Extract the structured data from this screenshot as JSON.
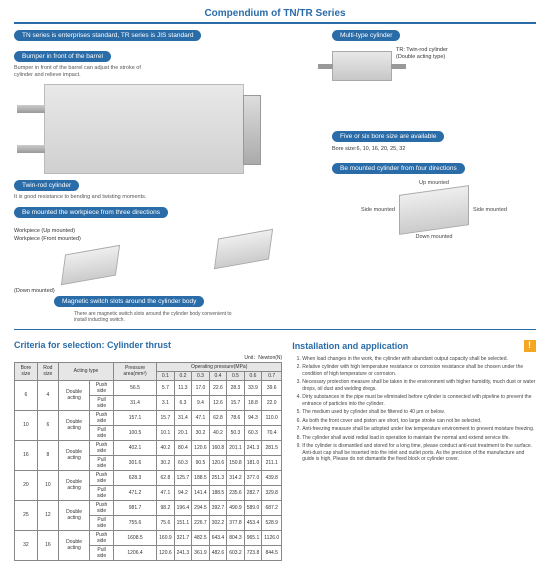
{
  "title": "Compendium of TN/TR Series",
  "subtitle_pill": "TN series is enterprises standard, TR series is JIS standard",
  "multi_type": {
    "pill": "Multi-type cylinder",
    "label": "TR: Twin-rod cylinder (Double acting type)"
  },
  "callouts": {
    "bumper": {
      "pill": "Bumper in front of the barrel",
      "desc": "Bumper in front of the barrel can adjust the stroke of cylinder and relieve impact."
    },
    "twinrod": {
      "pill": "Twin-rod cylinder",
      "desc": "It is good resistance to bending and twisting moments."
    },
    "three_dir": {
      "pill": "Be mounted the workpiece from three directions"
    },
    "four_dir": {
      "pill": "Be mounted cylinder from four directions"
    },
    "bore": {
      "pill": "Five or six bore size are available",
      "desc": "Bore size:6, 10, 16, 20, 25, 32"
    },
    "magnetic": {
      "pill": "Magnetic switch slots around the cylinder body",
      "desc": "There are magnetic switch slots around the cylinder body convenient to install inducting switch."
    }
  },
  "workpiece": {
    "up": "Workpiece (Up mounted)",
    "front": "Workpiece (Front mounted)",
    "down": "(Down mounted)"
  },
  "mount4": {
    "up": "Up mounted",
    "side": "Side mounted",
    "sideL": "Side mounted",
    "down": "Down mounted"
  },
  "criteria_title": "Criteria for selection: Cylinder thrust",
  "install_title": "Installation and application",
  "unit": "Unit：Newton(N)",
  "table": {
    "headers": {
      "bore": "Bore size",
      "rod": "Rod size",
      "acting": "Acting type",
      "push": "Push side",
      "pull": "Pull side",
      "double": "Double acting",
      "press_area": "Pressure area(mm²)",
      "op_press": "Operating pressure(MPa)",
      "p": [
        "0.1",
        "0.2",
        "0.3",
        "0.4",
        "0.5",
        "0.6",
        "0.7"
      ]
    },
    "rows": [
      {
        "bore": "6",
        "rod": "4",
        "pa_push": "56.5",
        "pa_pull": "31.4",
        "push": [
          "5.7",
          "11.3",
          "17.0",
          "22.6",
          "28.3",
          "33.9",
          "39.6"
        ],
        "pull": [
          "3.1",
          "6.3",
          "9.4",
          "12.6",
          "15.7",
          "18.8",
          "22.0"
        ]
      },
      {
        "bore": "10",
        "rod": "6",
        "pa_push": "157.1",
        "pa_pull": "100.5",
        "push": [
          "15.7",
          "31.4",
          "47.1",
          "62.8",
          "78.6",
          "94.3",
          "110.0"
        ],
        "pull": [
          "10.1",
          "20.1",
          "30.2",
          "40.2",
          "50.3",
          "60.3",
          "70.4"
        ]
      },
      {
        "bore": "16",
        "rod": "8",
        "pa_push": "402.1",
        "pa_pull": "301.6",
        "push": [
          "40.2",
          "80.4",
          "120.6",
          "160.8",
          "201.1",
          "241.3",
          "281.5"
        ],
        "pull": [
          "30.2",
          "60.3",
          "90.5",
          "120.6",
          "150.8",
          "181.0",
          "211.1"
        ]
      },
      {
        "bore": "20",
        "rod": "10",
        "pa_push": "628.3",
        "pa_pull": "471.2",
        "push": [
          "62.8",
          "125.7",
          "188.5",
          "251.3",
          "314.2",
          "377.0",
          "439.8"
        ],
        "pull": [
          "47.1",
          "94.2",
          "141.4",
          "188.5",
          "235.6",
          "282.7",
          "329.8"
        ]
      },
      {
        "bore": "25",
        "rod": "12",
        "pa_push": "981.7",
        "pa_pull": "755.6",
        "push": [
          "98.2",
          "196.4",
          "294.5",
          "392.7",
          "490.9",
          "589.0",
          "687.2"
        ],
        "pull": [
          "75.6",
          "151.1",
          "226.7",
          "302.2",
          "377.8",
          "453.4",
          "528.9"
        ]
      },
      {
        "bore": "32",
        "rod": "16",
        "pa_push": "1608.5",
        "pa_pull": "1206.4",
        "push": [
          "160.9",
          "321.7",
          "482.5",
          "643.4",
          "804.3",
          "965.1",
          "1126.0"
        ],
        "pull": [
          "120.6",
          "241.3",
          "361.9",
          "482.6",
          "603.2",
          "723.8",
          "844.5"
        ]
      }
    ]
  },
  "install_items": [
    "When load changes in the work, the cylinder with abundant output capacity shall be selected.",
    "Relative cylinder with high temperature resistance or corrosion resistance shall be chosen under the condition of high temperature or corrosion.",
    "Necessary protection measure shall be taken in the environment with higher humidity, much dust or water drops, oil dust and welding dregs.",
    "Dirty substances in the pipe must be eliminated before cylinder is connected with pipeline to prevent the entrance of particles into the cylinder.",
    "The medium used by cylinder shall be filtered to 40 μm or below.",
    "As both the front cover and piston are short, too large stroke can not be selected.",
    "Anti-freezing measure shall be adopted under low temperature environment to prevent moisture freezing.",
    "The cylinder shall avoid redial load in operation to maintain the normal and extend service life.",
    "If the cylinder is dismantled and stored for a long time, please conduct anti-rust treatment to the surface. Anti-dust cap shall be inserted into the inlet and outlet ports. As the precision of the manufacture and guide is high, Please do not dismantle the fixed block or cylinder cover."
  ],
  "colors": {
    "primary": "#2a6ca8",
    "warn": "#f5a623"
  }
}
